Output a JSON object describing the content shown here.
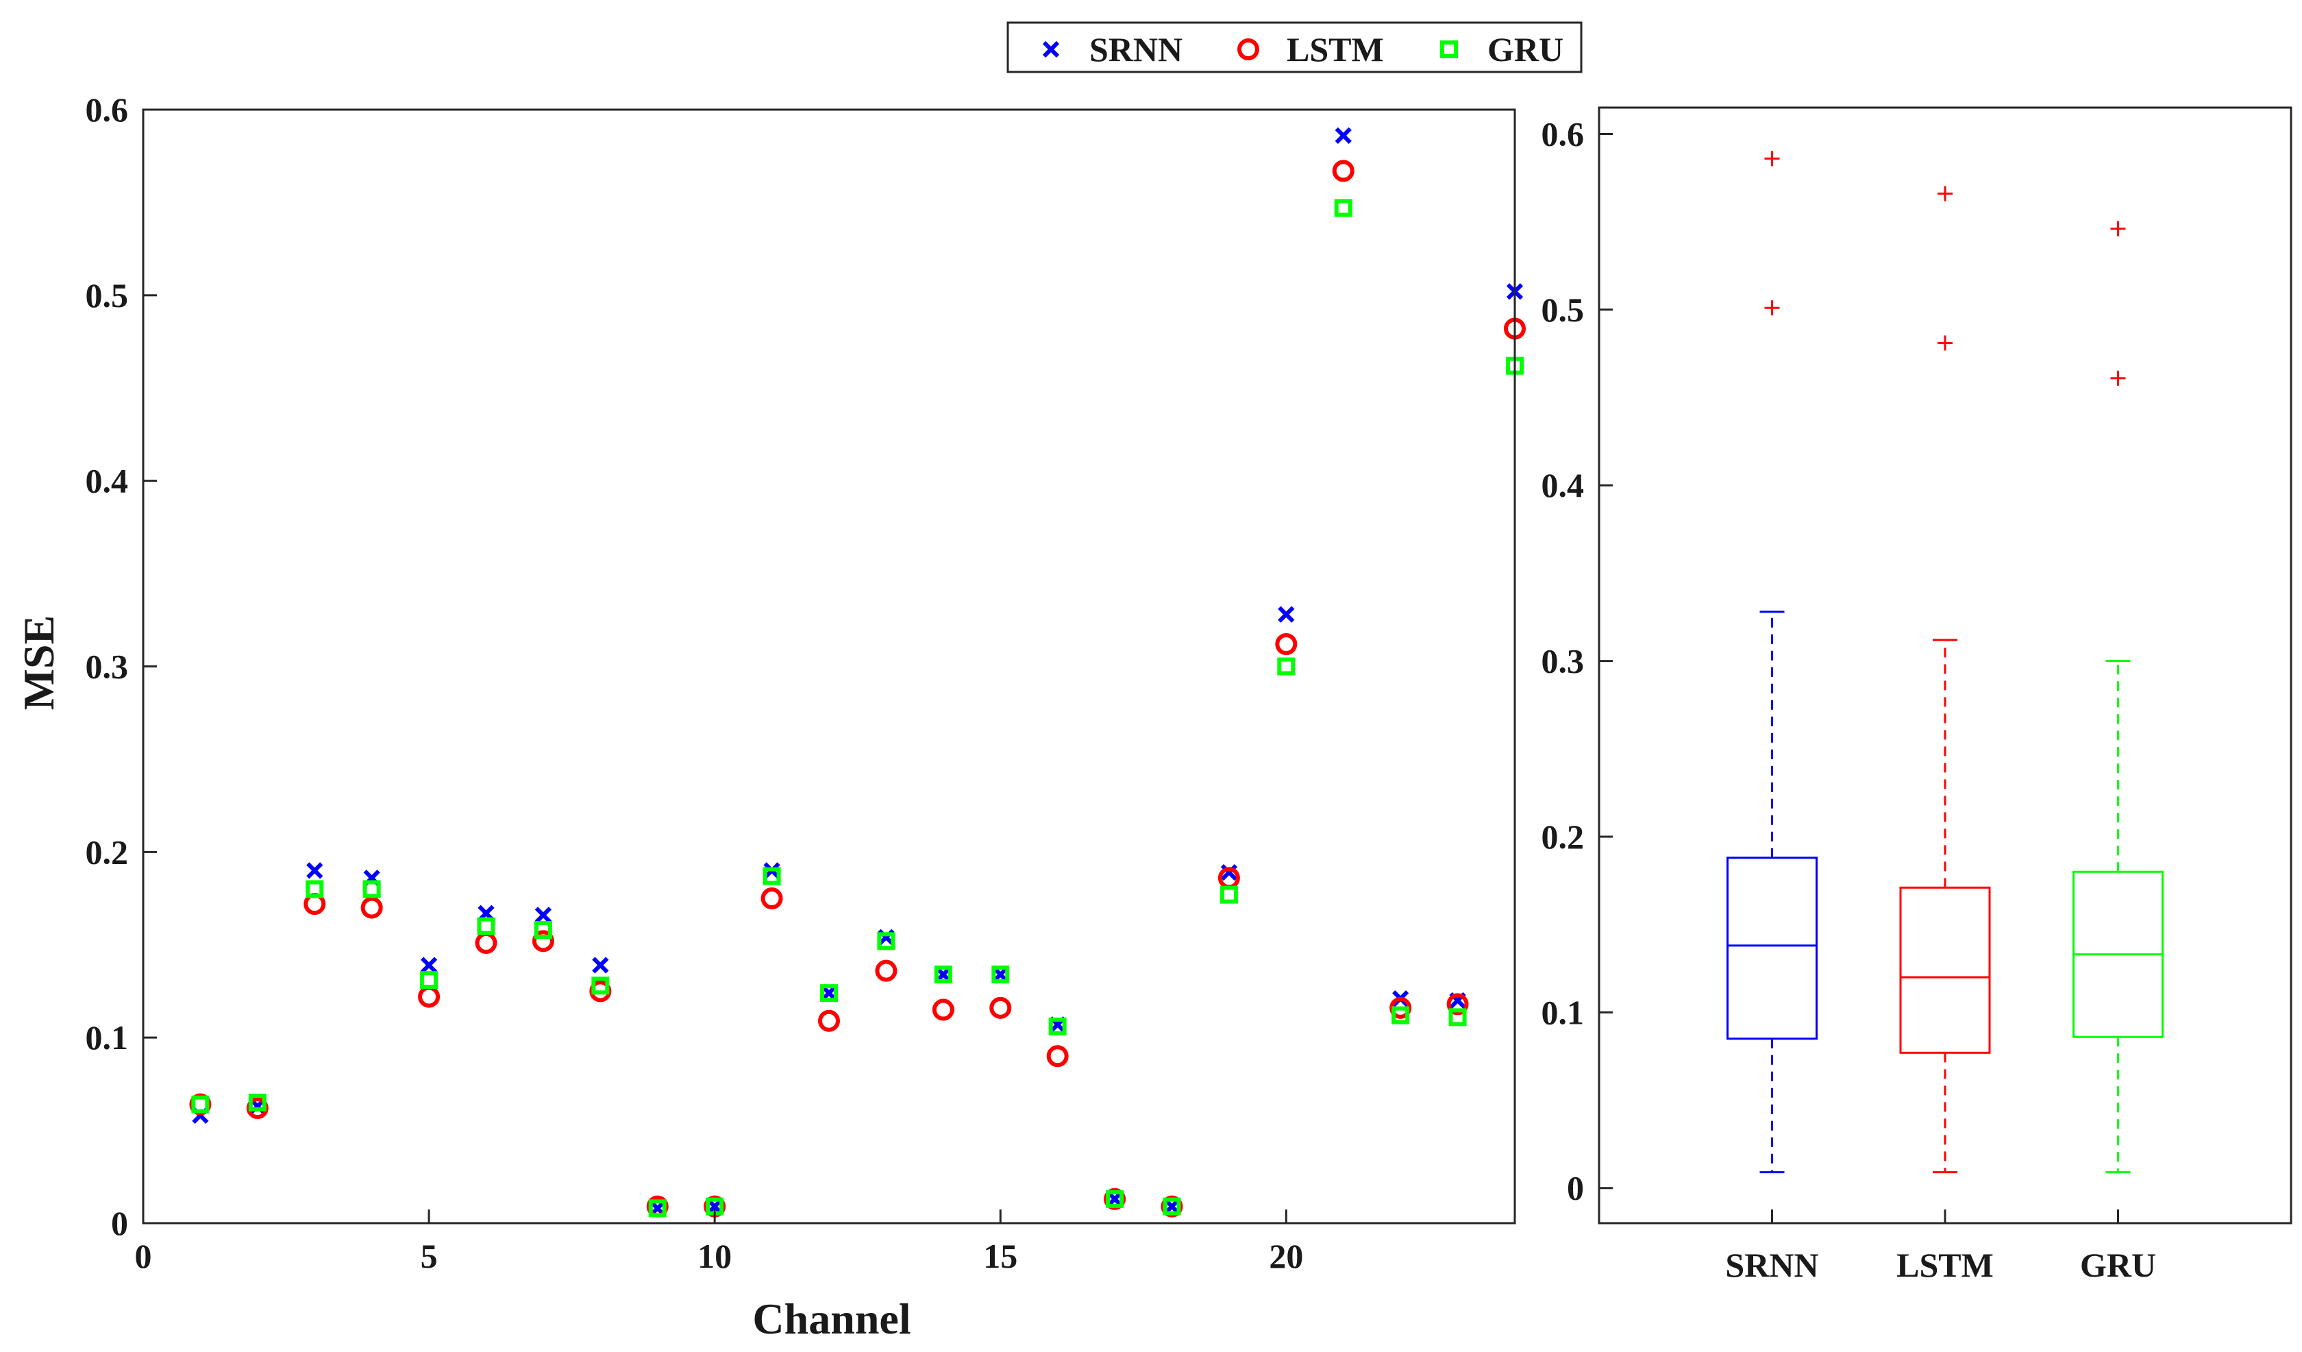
{
  "chart_data": [
    {
      "type": "scatter",
      "xlabel": "Channel",
      "ylabel": "MSE",
      "xlim": [
        0,
        24
      ],
      "ylim": [
        0,
        0.6
      ],
      "xticks": [
        0,
        5,
        10,
        15,
        20
      ],
      "yticks": [
        0,
        0.1,
        0.2,
        0.3,
        0.4,
        0.5,
        0.6
      ],
      "ytick_labels": [
        "0",
        "0.1",
        "0.2",
        "0.3",
        "0.4",
        "0.5",
        "0.6"
      ],
      "grid": false,
      "legend_position": "top-center",
      "x": [
        1,
        2,
        3,
        4,
        5,
        6,
        7,
        8,
        9,
        10,
        11,
        12,
        13,
        14,
        15,
        16,
        17,
        18,
        19,
        20,
        21,
        22,
        23,
        24
      ],
      "series": [
        {
          "name": "SRNN",
          "marker": "x",
          "color": "#0000ff",
          "values": [
            0.058,
            0.063,
            0.19,
            0.186,
            0.139,
            0.167,
            0.166,
            0.139,
            0.008,
            0.009,
            0.19,
            0.124,
            0.154,
            0.134,
            0.134,
            0.107,
            0.013,
            0.009,
            0.189,
            0.328,
            0.586,
            0.121,
            0.12,
            0.502
          ]
        },
        {
          "name": "LSTM",
          "marker": "o",
          "color": "#ff0000",
          "values": [
            0.064,
            0.062,
            0.172,
            0.17,
            0.122,
            0.151,
            0.152,
            0.125,
            0.009,
            0.009,
            0.175,
            0.109,
            0.136,
            0.115,
            0.116,
            0.09,
            0.013,
            0.009,
            0.186,
            0.312,
            0.567,
            0.116,
            0.118,
            0.482
          ]
        },
        {
          "name": "GRU",
          "marker": "s",
          "color": "#00ff00",
          "values": [
            0.064,
            0.065,
            0.18,
            0.18,
            0.131,
            0.16,
            0.158,
            0.128,
            0.008,
            0.009,
            0.187,
            0.124,
            0.152,
            0.134,
            0.134,
            0.106,
            0.013,
            0.009,
            0.177,
            0.3,
            0.547,
            0.112,
            0.111,
            0.462
          ]
        }
      ]
    },
    {
      "type": "box",
      "categories": [
        "SRNN",
        "LSTM",
        "GRU"
      ],
      "ylim": [
        -0.02,
        0.615
      ],
      "yticks": [
        0,
        0.1,
        0.2,
        0.3,
        0.4,
        0.5,
        0.6
      ],
      "ytick_labels": [
        "0",
        "0.1",
        "0.2",
        "0.3",
        "0.4",
        "0.5",
        "0.6"
      ],
      "grid": false,
      "outlier_color": "#ff0000",
      "boxes": [
        {
          "name": "SRNN",
          "color": "#0000ff",
          "whisker_low": 0.009,
          "q1": 0.085,
          "median": 0.138,
          "q3": 0.188,
          "whisker_high": 0.328,
          "outliers": [
            0.501,
            0.586
          ]
        },
        {
          "name": "LSTM",
          "color": "#ff0000",
          "whisker_low": 0.009,
          "q1": 0.077,
          "median": 0.12,
          "q3": 0.171,
          "whisker_high": 0.312,
          "outliers": [
            0.481,
            0.566
          ]
        },
        {
          "name": "GRU",
          "color": "#00ff00",
          "whisker_low": 0.009,
          "q1": 0.086,
          "median": 0.133,
          "q3": 0.18,
          "whisker_high": 0.3,
          "outliers": [
            0.461,
            0.546
          ]
        }
      ]
    }
  ]
}
